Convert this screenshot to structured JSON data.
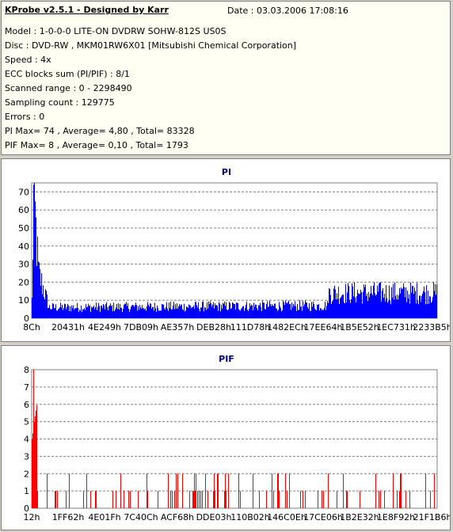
{
  "info": {
    "title": "KProbe v2.5.1 - Designed by Karr",
    "date": "Date : 03.03.2006 17:08:16",
    "lines": [
      "Model : 1-0-0-0 LITE-ON DVDRW SOHW-812S  US0S",
      "Disc : DVD-RW , MKM01RW6X01 [Mitsubishi Chemical Corporation]",
      "Speed : 4x",
      "ECC blocks sum (PI/PIF) : 8/1",
      "Scanned range : 0 - 2298490",
      "Sampling count : 129775",
      "Errors : 0",
      "PI Max= 74 , Average= 4,80 , Total= 83328",
      "PIF Max= 8 , Average= 0,10 , Total= 1793"
    ]
  },
  "chart_data": [
    {
      "type": "bar",
      "title": "PI",
      "color": "#0000ff",
      "ylim": [
        0,
        75
      ],
      "yticks": [
        0,
        10,
        20,
        30,
        40,
        50,
        60,
        70
      ],
      "xtick_labels": [
        "8Ch",
        "20431h",
        "4E249h",
        "7DB09h",
        "AE357h",
        "DEB28h",
        "111D78h",
        "1482ECh",
        "17EE64h",
        "1B5E52h",
        "1EC731h",
        "2233B5h"
      ],
      "grid": true,
      "series": [
        {
          "segments": [
            {
              "from": 0.0,
              "to": 0.004,
              "values": [
                10,
                70
              ]
            },
            {
              "from": 0.004,
              "to": 0.016,
              "values": [
                70,
                25
              ]
            },
            {
              "from": 0.016,
              "to": 0.04,
              "values": [
                25,
                8
              ]
            },
            {
              "from": 0.04,
              "to": 0.73,
              "values": [
                6,
                7
              ]
            },
            {
              "from": 0.73,
              "to": 1.0,
              "values": [
                14,
                14
              ]
            }
          ],
          "peak": 74
        }
      ]
    },
    {
      "type": "bar",
      "title": "PIF",
      "color": "#ff0000",
      "ylim": [
        0,
        8
      ],
      "yticks": [
        0,
        1,
        2,
        3,
        4,
        5,
        6,
        7,
        8
      ],
      "xtick_labels": [
        "12h",
        "1FF62h",
        "4E01Fh",
        "7C40Ch",
        "ACF68h",
        "DDE03h",
        "110B02h",
        "146C0Eh",
        "17CE06h",
        "1B2E32h",
        "1E8F92h",
        "21F1B6h"
      ],
      "grid": true,
      "series": [
        {
          "segments": [
            {
              "from": 0.0,
              "to": 0.012,
              "values": [
                4,
                6
              ]
            },
            {
              "from": 0.012,
              "to": 1.0,
              "values": [
                0,
                0
              ]
            }
          ],
          "peak": 8
        }
      ]
    }
  ]
}
